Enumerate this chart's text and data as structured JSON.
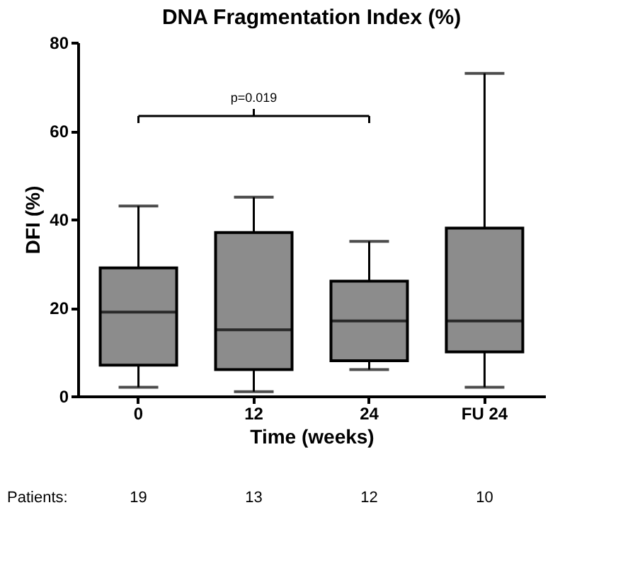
{
  "chart_data": {
    "type": "box",
    "title": "DNA Fragmentation Index (%)",
    "xlabel": "Time (weeks)",
    "ylabel": "DFI (%)",
    "categories": [
      "0",
      "12",
      "24",
      "FU 24"
    ],
    "boxes": [
      {
        "low": 2,
        "q1": 7,
        "median": 19,
        "q3": 29,
        "high": 43
      },
      {
        "low": 1,
        "q1": 6,
        "median": 15,
        "q3": 37,
        "high": 45
      },
      {
        "low": 6,
        "q1": 8,
        "median": 17,
        "q3": 26,
        "high": 35
      },
      {
        "low": 2,
        "q1": 10,
        "median": 17,
        "q3": 38,
        "high": 73
      }
    ],
    "color": "#8c8c8c",
    "ylim": [
      0,
      80
    ],
    "yticks": [
      0,
      20,
      40,
      60,
      80
    ],
    "grid": false,
    "annotations": [
      "p=0.019",
      "Patients:",
      "19",
      "13",
      "12",
      "10"
    ]
  }
}
